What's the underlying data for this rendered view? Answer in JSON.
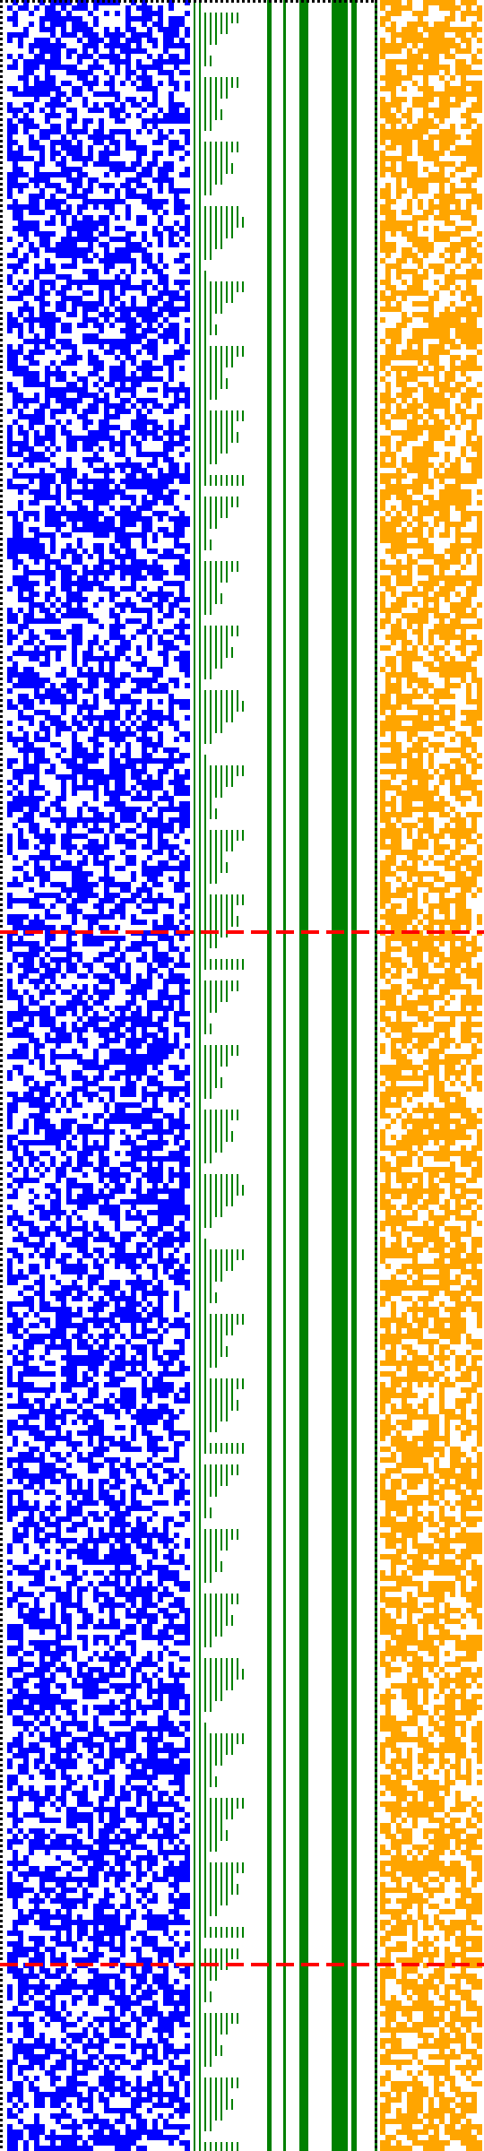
{
  "figure": {
    "description_kind": "pixel-grid visualization",
    "colors": {
      "left_cells": "#0000ff",
      "staircase": "#008000",
      "right_cells": "#ffa500",
      "separator_lines": "#ff0000",
      "dotted_border": "#000000",
      "background": "#ffffff"
    },
    "panels": [
      {
        "name": "left-random-grid",
        "color_key": "left_cells"
      },
      {
        "name": "green-staircase",
        "color_key": "staircase"
      },
      {
        "name": "green-vertical-bars",
        "color_key": "staircase"
      },
      {
        "name": "right-random-grid",
        "color_key": "right_cells"
      }
    ],
    "horizontal_separators": 2,
    "separator_style": "dashed"
  }
}
